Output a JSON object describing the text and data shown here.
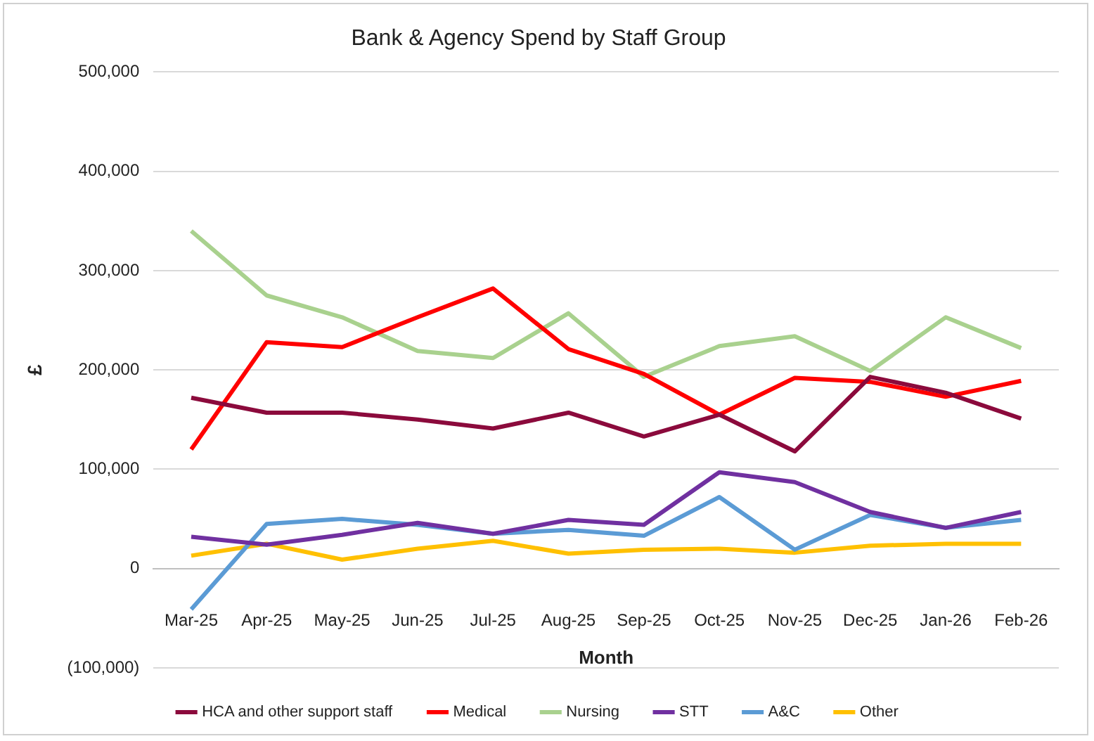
{
  "chart_data": {
    "type": "line",
    "title": "Bank & Agency Spend by Staff Group",
    "xlabel": "Month",
    "ylabel": "£",
    "categories": [
      "Mar-25",
      "Apr-25",
      "May-25",
      "Jun-25",
      "Jul-25",
      "Aug-25",
      "Sep-25",
      "Oct-25",
      "Nov-25",
      "Dec-25",
      "Jan-26",
      "Feb-26"
    ],
    "series": [
      {
        "name": "HCA and other support staff",
        "color": "#8b0a3c",
        "values": [
          172000,
          157000,
          157000,
          150000,
          141000,
          157000,
          133000,
          155000,
          118000,
          193000,
          177000,
          151000
        ]
      },
      {
        "name": "Medical",
        "color": "#ff0000",
        "values": [
          120000,
          228000,
          223000,
          253000,
          282000,
          221000,
          196000,
          155000,
          192000,
          188000,
          173000,
          189000
        ]
      },
      {
        "name": "Nursing",
        "color": "#a9d18e",
        "values": [
          340000,
          275000,
          253000,
          219000,
          212000,
          257000,
          193000,
          224000,
          234000,
          199000,
          253000,
          222000
        ]
      },
      {
        "name": "STT",
        "color": "#7030a0",
        "values": [
          32000,
          24000,
          34000,
          46000,
          35000,
          49000,
          44000,
          97000,
          87000,
          57000,
          41000,
          57000
        ]
      },
      {
        "name": "A&C",
        "color": "#5b9bd5",
        "values": [
          -41000,
          45000,
          50000,
          44000,
          35000,
          39000,
          33000,
          72000,
          19000,
          54000,
          41000,
          49000
        ]
      },
      {
        "name": "Other",
        "color": "#ffc000",
        "values": [
          13000,
          25000,
          9000,
          20000,
          28000,
          15000,
          19000,
          20000,
          16000,
          23000,
          25000,
          25000
        ]
      }
    ],
    "ylim": [
      -100000,
      500000
    ],
    "yticks": [
      {
        "value": -100000,
        "label": "(100,000)"
      },
      {
        "value": 0,
        "label": "0"
      },
      {
        "value": 100000,
        "label": "100,000"
      },
      {
        "value": 200000,
        "label": "200,000"
      },
      {
        "value": 300000,
        "label": "300,000"
      },
      {
        "value": 400000,
        "label": "400,000"
      },
      {
        "value": 500000,
        "label": "500,000"
      }
    ],
    "grid": "y",
    "legend": "bottom",
    "marker": "none",
    "line_style": "solid"
  }
}
